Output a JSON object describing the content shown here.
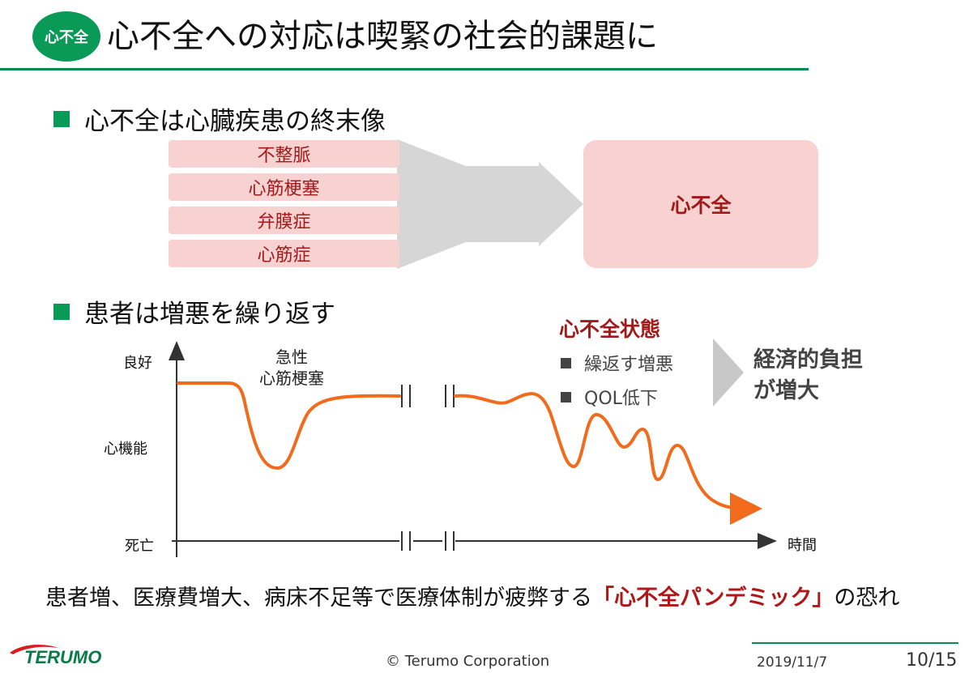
{
  "header": {
    "badge": "心不全",
    "title": "心不全への対応は喫緊の社会的課題に"
  },
  "section1": {
    "heading": "心不全は心臓疾患の終末像",
    "causes": [
      "不整脈",
      "心筋梗塞",
      "弁膜症",
      "心筋症"
    ],
    "result": "心不全"
  },
  "section2": {
    "heading": "患者は増悪を繰り返す",
    "y_labels": {
      "top": "良好",
      "middle": "心機能",
      "bottom": "死亡"
    },
    "x_label": "時間",
    "event_label_line1": "急性",
    "event_label_line2": "心筋梗塞",
    "state": {
      "title": "心不全状態",
      "items": [
        "繰返す増悪",
        "QOL低下"
      ]
    },
    "burden_line1": "経済的負担",
    "burden_line2": "が増大"
  },
  "conclusion": {
    "before": "患者増、医療費増大、病床不足等で医療体制が疲弊する",
    "emphasis": "「心不全パンデミック」",
    "after": "の恐れ"
  },
  "footer": {
    "logo_text": "TERUMO",
    "copyright": "© Terumo Corporation",
    "date": "2019/11/7",
    "page": "10/15"
  },
  "colors": {
    "brand_green": "#0a9a58",
    "accent_red": "#a11a1a",
    "curve_orange": "#f26a1b",
    "box_pink": "#f8d1d1"
  }
}
